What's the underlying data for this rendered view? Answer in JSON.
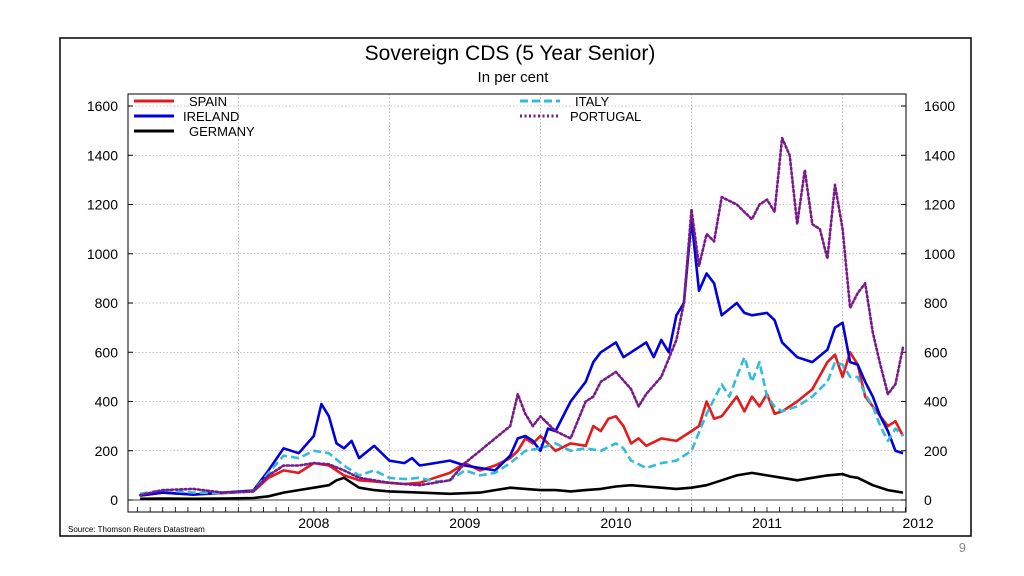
{
  "page_number": "9",
  "chart_data": {
    "type": "line",
    "title": "Sovereign CDS (5 Year Senior)",
    "subtitle": "In per cent",
    "source": "Source: Thomson Reuters Datastream",
    "xlabel": "",
    "ylabel": "",
    "ylim": [
      0,
      1600
    ],
    "yticks": [
      0,
      200,
      400,
      600,
      800,
      1000,
      1200,
      1400,
      1600
    ],
    "xlim": [
      2007.27,
      2012.42
    ],
    "xtick_labels": [
      "2008",
      "2009",
      "2010",
      "2011",
      "2012"
    ],
    "year_boundaries": [
      2008,
      2009,
      2010,
      2011,
      2012
    ],
    "grid": true,
    "legend_position": "top-left and top-center",
    "series": [
      {
        "name": "SPAIN",
        "color": "#e41a1c",
        "style": "solid",
        "x": [
          2007.35,
          2007.5,
          2007.7,
          2007.9,
          2008.1,
          2008.2,
          2008.3,
          2008.4,
          2008.5,
          2008.6,
          2008.65,
          2008.7,
          2008.75,
          2008.8,
          2008.9,
          2009.0,
          2009.1,
          2009.2,
          2009.3,
          2009.4,
          2009.5,
          2009.6,
          2009.7,
          2009.8,
          2009.85,
          2009.9,
          2009.95,
          2010.0,
          2010.05,
          2010.1,
          2010.2,
          2010.3,
          2010.35,
          2010.4,
          2010.45,
          2010.5,
          2010.55,
          2010.6,
          2010.65,
          2010.7,
          2010.8,
          2010.9,
          2011.0,
          2011.05,
          2011.1,
          2011.15,
          2011.2,
          2011.3,
          2011.35,
          2011.4,
          2011.45,
          2011.5,
          2011.55,
          2011.6,
          2011.7,
          2011.8,
          2011.9,
          2011.95,
          2012.0,
          2012.05,
          2012.1,
          2012.15,
          2012.2,
          2012.25,
          2012.3,
          2012.35,
          2012.4
        ],
        "y": [
          18,
          30,
          22,
          28,
          35,
          90,
          120,
          110,
          150,
          140,
          120,
          100,
          90,
          80,
          75,
          70,
          65,
          70,
          90,
          110,
          150,
          120,
          140,
          170,
          200,
          250,
          230,
          260,
          230,
          200,
          230,
          220,
          300,
          280,
          330,
          340,
          300,
          230,
          250,
          220,
          250,
          240,
          280,
          300,
          400,
          330,
          340,
          420,
          360,
          420,
          380,
          430,
          350,
          360,
          400,
          450,
          560,
          590,
          500,
          600,
          550,
          420,
          380,
          340,
          300,
          320,
          260
        ]
      },
      {
        "name": "IRELAND",
        "color": "#0000dd",
        "style": "solid",
        "x": [
          2007.35,
          2007.5,
          2007.7,
          2007.9,
          2008.1,
          2008.2,
          2008.3,
          2008.4,
          2008.5,
          2008.55,
          2008.6,
          2008.65,
          2008.7,
          2008.75,
          2008.8,
          2008.9,
          2009.0,
          2009.1,
          2009.15,
          2009.2,
          2009.3,
          2009.4,
          2009.5,
          2009.6,
          2009.7,
          2009.8,
          2009.85,
          2009.9,
          2009.95,
          2010.0,
          2010.05,
          2010.1,
          2010.2,
          2010.3,
          2010.35,
          2010.4,
          2010.5,
          2010.55,
          2010.6,
          2010.7,
          2010.75,
          2010.8,
          2010.85,
          2010.9,
          2010.95,
          2011.0,
          2011.05,
          2011.1,
          2011.15,
          2011.2,
          2011.3,
          2011.35,
          2011.4,
          2011.5,
          2011.55,
          2011.6,
          2011.7,
          2011.8,
          2011.9,
          2011.95,
          2012.0,
          2012.05,
          2012.1,
          2012.15,
          2012.2,
          2012.25,
          2012.3,
          2012.35,
          2012.4
        ],
        "y": [
          18,
          30,
          22,
          30,
          38,
          120,
          210,
          190,
          260,
          390,
          340,
          230,
          210,
          240,
          170,
          220,
          160,
          150,
          170,
          140,
          150,
          160,
          140,
          130,
          120,
          180,
          250,
          260,
          240,
          200,
          290,
          280,
          400,
          480,
          560,
          600,
          640,
          580,
          600,
          640,
          580,
          650,
          600,
          750,
          800,
          1140,
          850,
          920,
          880,
          750,
          800,
          760,
          750,
          760,
          730,
          640,
          580,
          560,
          610,
          700,
          720,
          560,
          550,
          480,
          420,
          340,
          280,
          200,
          190
        ]
      },
      {
        "name": "GERMANY",
        "color": "#000000",
        "style": "solid",
        "x": [
          2007.35,
          2007.5,
          2007.7,
          2007.9,
          2008.1,
          2008.2,
          2008.3,
          2008.4,
          2008.5,
          2008.6,
          2008.65,
          2008.7,
          2008.75,
          2008.8,
          2008.9,
          2009.0,
          2009.2,
          2009.4,
          2009.6,
          2009.7,
          2009.8,
          2009.9,
          2010.0,
          2010.1,
          2010.2,
          2010.3,
          2010.4,
          2010.5,
          2010.6,
          2010.7,
          2010.8,
          2010.9,
          2011.0,
          2011.1,
          2011.2,
          2011.3,
          2011.4,
          2011.5,
          2011.6,
          2011.7,
          2011.8,
          2011.9,
          2012.0,
          2012.05,
          2012.1,
          2012.2,
          2012.3,
          2012.4
        ],
        "y": [
          5,
          6,
          5,
          6,
          8,
          15,
          30,
          40,
          50,
          60,
          80,
          90,
          70,
          50,
          40,
          35,
          30,
          25,
          30,
          40,
          50,
          45,
          40,
          40,
          35,
          40,
          45,
          55,
          60,
          55,
          50,
          45,
          50,
          60,
          80,
          100,
          110,
          100,
          90,
          80,
          90,
          100,
          105,
          95,
          90,
          60,
          40,
          30
        ]
      },
      {
        "name": "ITALY",
        "color": "#33bbdd",
        "style": "dashed",
        "x": [
          2007.35,
          2007.5,
          2007.7,
          2007.9,
          2008.1,
          2008.2,
          2008.3,
          2008.4,
          2008.5,
          2008.6,
          2008.7,
          2008.8,
          2008.9,
          2009.0,
          2009.1,
          2009.2,
          2009.3,
          2009.4,
          2009.5,
          2009.6,
          2009.7,
          2009.8,
          2009.9,
          2010.0,
          2010.1,
          2010.2,
          2010.3,
          2010.4,
          2010.5,
          2010.55,
          2010.6,
          2010.7,
          2010.8,
          2010.9,
          2011.0,
          2011.1,
          2011.2,
          2011.25,
          2011.3,
          2011.35,
          2011.4,
          2011.45,
          2011.5,
          2011.55,
          2011.6,
          2011.7,
          2011.8,
          2011.9,
          2011.95,
          2012.0,
          2012.05,
          2012.1,
          2012.15,
          2012.2,
          2012.25,
          2012.3,
          2012.35,
          2012.4
        ],
        "y": [
          25,
          40,
          30,
          28,
          35,
          110,
          180,
          170,
          200,
          190,
          140,
          100,
          120,
          90,
          85,
          90,
          75,
          80,
          120,
          100,
          110,
          150,
          200,
          210,
          230,
          200,
          210,
          200,
          230,
          210,
          160,
          130,
          150,
          160,
          200,
          350,
          470,
          420,
          500,
          580,
          480,
          560,
          420,
          380,
          360,
          380,
          420,
          480,
          560,
          550,
          500,
          500,
          430,
          380,
          300,
          240,
          290,
          260
        ]
      },
      {
        "name": "PORTUGAL",
        "color": "#7a1a8a",
        "style": "dotted",
        "x": [
          2007.35,
          2007.5,
          2007.7,
          2007.9,
          2008.1,
          2008.2,
          2008.3,
          2008.4,
          2008.5,
          2008.6,
          2008.7,
          2008.8,
          2008.9,
          2009.0,
          2009.1,
          2009.2,
          2009.3,
          2009.4,
          2009.5,
          2009.6,
          2009.7,
          2009.8,
          2009.85,
          2009.9,
          2009.95,
          2010.0,
          2010.1,
          2010.2,
          2010.3,
          2010.35,
          2010.4,
          2010.5,
          2010.6,
          2010.65,
          2010.7,
          2010.8,
          2010.9,
          2010.95,
          2011.0,
          2011.05,
          2011.1,
          2011.15,
          2011.2,
          2011.3,
          2011.4,
          2011.45,
          2011.5,
          2011.55,
          2011.6,
          2011.65,
          2011.7,
          2011.75,
          2011.8,
          2011.85,
          2011.9,
          2011.95,
          2012.0,
          2012.05,
          2012.1,
          2012.15,
          2012.2,
          2012.25,
          2012.3,
          2012.35,
          2012.4
        ],
        "y": [
          20,
          40,
          45,
          30,
          35,
          100,
          140,
          140,
          150,
          145,
          120,
          90,
          80,
          70,
          65,
          60,
          70,
          80,
          150,
          200,
          250,
          300,
          430,
          350,
          300,
          340,
          280,
          250,
          400,
          420,
          480,
          520,
          450,
          380,
          430,
          500,
          650,
          800,
          1180,
          950,
          1080,
          1050,
          1230,
          1200,
          1140,
          1200,
          1220,
          1170,
          1470,
          1400,
          1120,
          1340,
          1120,
          1100,
          980,
          1280,
          1100,
          780,
          840,
          880,
          680,
          550,
          430,
          470,
          620
        ]
      }
    ]
  }
}
